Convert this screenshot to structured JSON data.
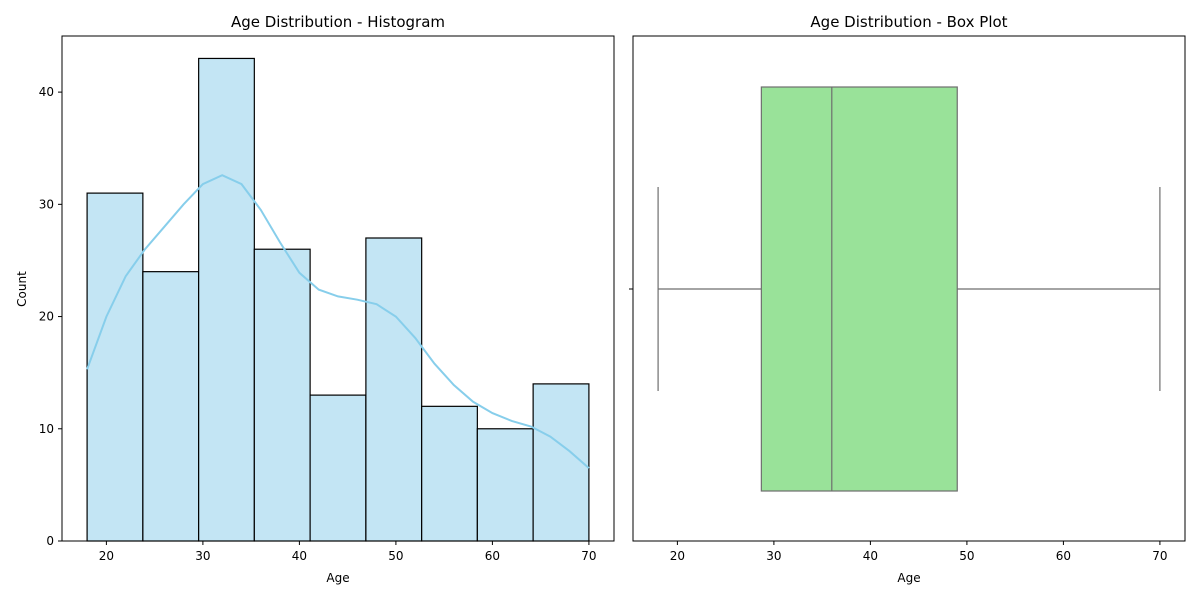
{
  "chart_data": [
    {
      "type": "histogram",
      "title": "Age Distribution - Histogram",
      "xlabel": "Age",
      "ylabel": "Count",
      "xlim": [
        15.4,
        72.6
      ],
      "ylim": [
        0,
        45
      ],
      "xticks": [
        20,
        30,
        40,
        50,
        60,
        70
      ],
      "yticks": [
        0,
        10,
        20,
        30,
        40
      ],
      "bins": [
        {
          "start": 18.0,
          "end": 23.78,
          "count": 31
        },
        {
          "start": 23.78,
          "end": 29.56,
          "count": 24
        },
        {
          "start": 29.56,
          "end": 35.33,
          "count": 43
        },
        {
          "start": 35.33,
          "end": 41.11,
          "count": 26
        },
        {
          "start": 41.11,
          "end": 46.89,
          "count": 13
        },
        {
          "start": 46.89,
          "end": 52.67,
          "count": 27
        },
        {
          "start": 52.67,
          "end": 58.44,
          "count": 12
        },
        {
          "start": 58.44,
          "end": 64.22,
          "count": 10
        },
        {
          "start": 64.22,
          "end": 70.0,
          "count": 14
        }
      ],
      "kde": {
        "x": [
          18,
          20,
          22,
          24,
          26,
          28,
          30,
          32,
          34,
          36,
          38,
          40,
          42,
          44,
          46,
          48,
          50,
          52,
          54,
          56,
          58,
          60,
          62,
          64,
          66,
          68,
          70
        ],
        "y": [
          15.3,
          20.0,
          23.6,
          26.0,
          28.0,
          30.0,
          31.8,
          32.6,
          31.8,
          29.5,
          26.6,
          23.9,
          22.4,
          21.8,
          21.5,
          21.1,
          20.0,
          18.1,
          15.8,
          13.9,
          12.4,
          11.4,
          10.7,
          10.2,
          9.3,
          8.0,
          6.5
        ]
      },
      "colors": {
        "bar_fill": "#c3e5f4",
        "bar_edge": "#000000",
        "kde": "#87ceeb"
      }
    },
    {
      "type": "box",
      "title": "Age Distribution - Box Plot",
      "xlabel": "Age",
      "xlim": [
        15.4,
        72.6
      ],
      "xticks": [
        20,
        30,
        40,
        50,
        60,
        70
      ],
      "stats": {
        "min": 18,
        "q1": 28.7,
        "median": 36,
        "q3": 49,
        "max": 70
      },
      "colors": {
        "box_fill": "#99e299",
        "line": "#6e6e6e"
      }
    }
  ]
}
